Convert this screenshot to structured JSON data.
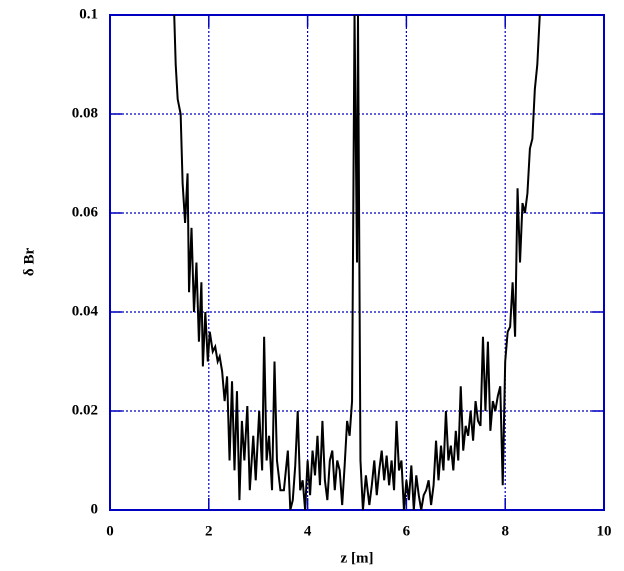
{
  "chart_data": {
    "type": "line",
    "xlabel": "z [m]",
    "ylabel": "δ Br",
    "x": [
      1.3,
      1.33,
      1.37,
      1.43,
      1.47,
      1.52,
      1.57,
      1.6,
      1.65,
      1.7,
      1.75,
      1.8,
      1.85,
      1.88,
      1.93,
      1.98,
      2.02,
      2.08,
      2.13,
      2.18,
      2.22,
      2.27,
      2.32,
      2.37,
      2.42,
      2.47,
      2.52,
      2.57,
      2.62,
      2.67,
      2.72,
      2.78,
      2.83,
      2.9,
      2.95,
      3.02,
      3.08,
      3.12,
      3.17,
      3.22,
      3.28,
      3.33,
      3.38,
      3.45,
      3.52,
      3.6,
      3.65,
      3.7,
      3.75,
      3.8,
      3.85,
      3.9,
      3.95,
      4.0,
      4.05,
      4.1,
      4.15,
      4.2,
      4.25,
      4.3,
      4.35,
      4.4,
      4.45,
      4.5,
      4.55,
      4.6,
      4.65,
      4.7,
      4.75,
      4.8,
      4.85,
      4.9,
      4.95,
      5.0,
      5.02,
      5.07,
      5.12,
      5.18,
      5.25,
      5.3,
      5.35,
      5.4,
      5.45,
      5.5,
      5.55,
      5.6,
      5.65,
      5.7,
      5.75,
      5.8,
      5.85,
      5.9,
      5.95,
      6.0,
      6.05,
      6.1,
      6.15,
      6.2,
      6.25,
      6.3,
      6.35,
      6.4,
      6.45,
      6.5,
      6.55,
      6.6,
      6.65,
      6.7,
      6.75,
      6.8,
      6.85,
      6.9,
      6.95,
      7.0,
      7.05,
      7.1,
      7.15,
      7.2,
      7.25,
      7.3,
      7.35,
      7.4,
      7.45,
      7.5,
      7.55,
      7.6,
      7.65,
      7.7,
      7.75,
      7.8,
      7.85,
      7.9,
      7.95,
      8.0,
      8.05,
      8.1,
      8.15,
      8.2,
      8.25,
      8.3,
      8.35,
      8.4,
      8.45,
      8.5,
      8.55,
      8.6,
      8.65,
      8.7
    ],
    "values": [
      0.1,
      0.09,
      0.083,
      0.08,
      0.066,
      0.058,
      0.068,
      0.044,
      0.057,
      0.04,
      0.05,
      0.034,
      0.046,
      0.029,
      0.04,
      0.03,
      0.036,
      0.032,
      0.033,
      0.03,
      0.031,
      0.028,
      0.022,
      0.027,
      0.01,
      0.026,
      0.008,
      0.024,
      0.002,
      0.018,
      0.01,
      0.021,
      0.004,
      0.015,
      0.006,
      0.02,
      0.008,
      0.035,
      0.01,
      0.015,
      0.004,
      0.03,
      0.01,
      0.004,
      0.004,
      0.012,
      0.0,
      0.002,
      0.009,
      0.02,
      0.004,
      0.006,
      0.0,
      0.01,
      0.003,
      0.012,
      0.007,
      0.015,
      0.005,
      0.018,
      0.006,
      0.002,
      0.01,
      0.012,
      0.004,
      0.01,
      0.008,
      0.001,
      0.009,
      0.018,
      0.015,
      0.022,
      0.1,
      0.05,
      0.1,
      0.01,
      0.0,
      0.007,
      0.001,
      0.005,
      0.01,
      0.003,
      0.008,
      0.012,
      0.006,
      0.011,
      0.005,
      0.01,
      0.004,
      0.018,
      0.008,
      0.01,
      0.0,
      0.006,
      0.002,
      0.009,
      0.0,
      0.007,
      0.003,
      0.0,
      0.003,
      0.004,
      0.006,
      0.001,
      0.005,
      0.014,
      0.006,
      0.013,
      0.008,
      0.02,
      0.01,
      0.013,
      0.008,
      0.016,
      0.01,
      0.025,
      0.012,
      0.017,
      0.015,
      0.02,
      0.014,
      0.022,
      0.018,
      0.017,
      0.035,
      0.02,
      0.034,
      0.016,
      0.022,
      0.02,
      0.023,
      0.025,
      0.005,
      0.03,
      0.036,
      0.037,
      0.046,
      0.035,
      0.065,
      0.05,
      0.062,
      0.06,
      0.064,
      0.073,
      0.075,
      0.085,
      0.09,
      0.1
    ],
    "color": "#000000",
    "axis_color": "#0000c0",
    "xlim": [
      0,
      10
    ],
    "xticks": [
      0,
      2,
      4,
      6,
      8,
      10
    ],
    "ylim": [
      0,
      0.1
    ],
    "yticks": [
      0,
      0.02,
      0.04,
      0.06,
      0.08,
      0.1
    ],
    "grid": true
  }
}
